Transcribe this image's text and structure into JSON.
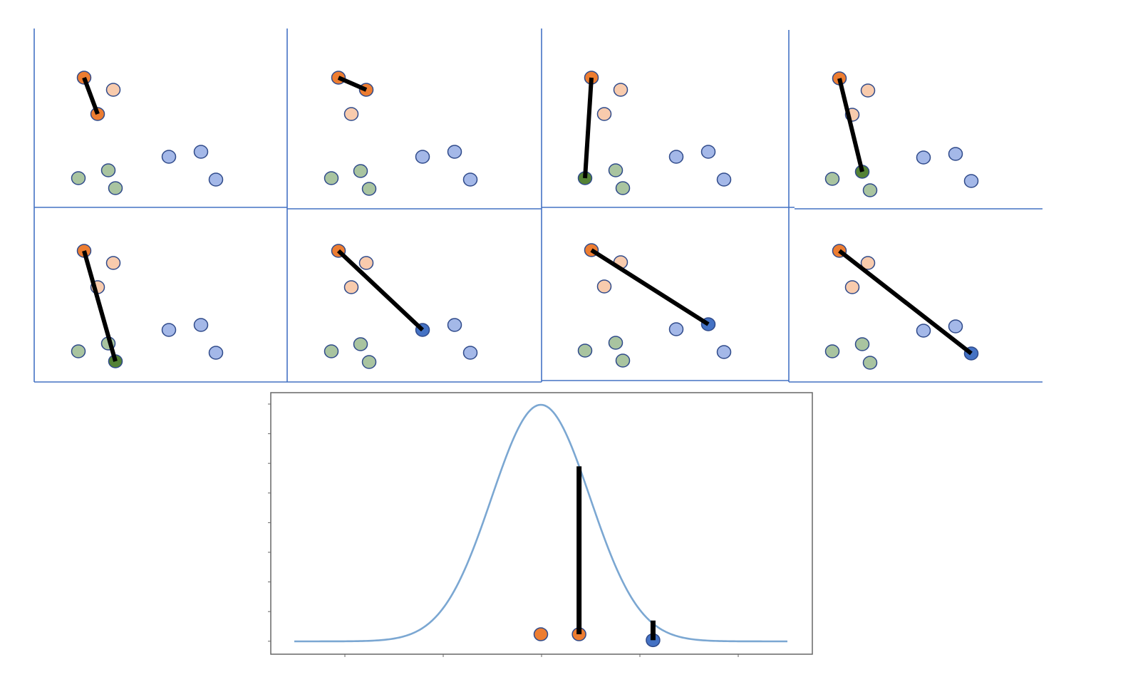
{
  "colors": {
    "panel_border": "#4472c4",
    "query_point": "#ed7d31",
    "orange_light": "#f8cbad",
    "green_light": "#a9c4a0",
    "green_dark": "#548235",
    "blue_light": "#a4b8e8",
    "blue_dark": "#4472c4",
    "point_outline": "#2f4a8a",
    "distance_line": "#000000",
    "curve": "#7ba7d2",
    "curve_frame": "#666666"
  },
  "panels": [
    {
      "points": [
        {
          "x": 118,
          "y": 109,
          "cls": "orange",
          "shade": "query"
        },
        {
          "x": 159,
          "y": 126,
          "cls": "orange",
          "shade": "light"
        },
        {
          "x": 137,
          "y": 160,
          "cls": "orange",
          "shade": "dark"
        },
        {
          "x": 110,
          "y": 250,
          "cls": "green",
          "shade": "light"
        },
        {
          "x": 152,
          "y": 239,
          "cls": "green",
          "shade": "light"
        },
        {
          "x": 162,
          "y": 264,
          "cls": "green",
          "shade": "light"
        },
        {
          "x": 237,
          "y": 220,
          "cls": "blue",
          "shade": "light"
        },
        {
          "x": 282,
          "y": 213,
          "cls": "blue",
          "shade": "light"
        },
        {
          "x": 303,
          "y": 252,
          "cls": "blue",
          "shade": "light"
        }
      ],
      "link": {
        "from": 0,
        "to": 2
      }
    },
    {
      "points": [
        {
          "x": 118,
          "y": 109,
          "cls": "orange",
          "shade": "query"
        },
        {
          "x": 157,
          "y": 126,
          "cls": "orange",
          "shade": "dark"
        },
        {
          "x": 136,
          "y": 160,
          "cls": "orange",
          "shade": "light"
        },
        {
          "x": 108,
          "y": 250,
          "cls": "green",
          "shade": "light"
        },
        {
          "x": 149,
          "y": 240,
          "cls": "green",
          "shade": "light"
        },
        {
          "x": 161,
          "y": 265,
          "cls": "green",
          "shade": "light"
        },
        {
          "x": 236,
          "y": 220,
          "cls": "blue",
          "shade": "light"
        },
        {
          "x": 281,
          "y": 213,
          "cls": "blue",
          "shade": "light"
        },
        {
          "x": 303,
          "y": 252,
          "cls": "blue",
          "shade": "light"
        }
      ],
      "link": {
        "from": 0,
        "to": 1
      }
    },
    {
      "points": [
        {
          "x": 118,
          "y": 109,
          "cls": "orange",
          "shade": "query"
        },
        {
          "x": 159,
          "y": 126,
          "cls": "orange",
          "shade": "light"
        },
        {
          "x": 136,
          "y": 160,
          "cls": "orange",
          "shade": "light"
        },
        {
          "x": 109,
          "y": 250,
          "cls": "green",
          "shade": "dark"
        },
        {
          "x": 152,
          "y": 239,
          "cls": "green",
          "shade": "light"
        },
        {
          "x": 162,
          "y": 264,
          "cls": "green",
          "shade": "light"
        },
        {
          "x": 237,
          "y": 220,
          "cls": "blue",
          "shade": "light"
        },
        {
          "x": 282,
          "y": 213,
          "cls": "blue",
          "shade": "light"
        },
        {
          "x": 304,
          "y": 252,
          "cls": "blue",
          "shade": "light"
        }
      ],
      "link": {
        "from": 0,
        "to": 3
      }
    },
    {
      "points": [
        {
          "x": 118,
          "y": 109,
          "cls": "orange",
          "shade": "query"
        },
        {
          "x": 158,
          "y": 126,
          "cls": "orange",
          "shade": "light"
        },
        {
          "x": 136,
          "y": 160,
          "cls": "orange",
          "shade": "light"
        },
        {
          "x": 108,
          "y": 250,
          "cls": "green",
          "shade": "light"
        },
        {
          "x": 150,
          "y": 240,
          "cls": "green",
          "shade": "dark"
        },
        {
          "x": 161,
          "y": 266,
          "cls": "green",
          "shade": "light"
        },
        {
          "x": 236,
          "y": 220,
          "cls": "blue",
          "shade": "light"
        },
        {
          "x": 281,
          "y": 215,
          "cls": "blue",
          "shade": "light"
        },
        {
          "x": 303,
          "y": 253,
          "cls": "blue",
          "shade": "light"
        }
      ],
      "link": {
        "from": 0,
        "to": 4
      }
    },
    {
      "points": [
        {
          "x": 118,
          "y": 109,
          "cls": "orange",
          "shade": "query"
        },
        {
          "x": 159,
          "y": 126,
          "cls": "orange",
          "shade": "light"
        },
        {
          "x": 137,
          "y": 160,
          "cls": "orange",
          "shade": "light"
        },
        {
          "x": 110,
          "y": 250,
          "cls": "green",
          "shade": "light"
        },
        {
          "x": 152,
          "y": 239,
          "cls": "green",
          "shade": "light"
        },
        {
          "x": 162,
          "y": 264,
          "cls": "green",
          "shade": "dark"
        },
        {
          "x": 237,
          "y": 220,
          "cls": "blue",
          "shade": "light"
        },
        {
          "x": 282,
          "y": 213,
          "cls": "blue",
          "shade": "light"
        },
        {
          "x": 303,
          "y": 252,
          "cls": "blue",
          "shade": "light"
        }
      ],
      "link": {
        "from": 0,
        "to": 5
      }
    },
    {
      "points": [
        {
          "x": 118,
          "y": 109,
          "cls": "orange",
          "shade": "query"
        },
        {
          "x": 157,
          "y": 126,
          "cls": "orange",
          "shade": "light"
        },
        {
          "x": 136,
          "y": 160,
          "cls": "orange",
          "shade": "light"
        },
        {
          "x": 108,
          "y": 250,
          "cls": "green",
          "shade": "light"
        },
        {
          "x": 149,
          "y": 240,
          "cls": "green",
          "shade": "light"
        },
        {
          "x": 161,
          "y": 265,
          "cls": "green",
          "shade": "light"
        },
        {
          "x": 236,
          "y": 220,
          "cls": "blue",
          "shade": "dark"
        },
        {
          "x": 281,
          "y": 213,
          "cls": "blue",
          "shade": "light"
        },
        {
          "x": 303,
          "y": 252,
          "cls": "blue",
          "shade": "light"
        }
      ],
      "link": {
        "from": 0,
        "to": 6
      }
    },
    {
      "points": [
        {
          "x": 118,
          "y": 109,
          "cls": "orange",
          "shade": "query"
        },
        {
          "x": 159,
          "y": 126,
          "cls": "orange",
          "shade": "light"
        },
        {
          "x": 136,
          "y": 160,
          "cls": "orange",
          "shade": "light"
        },
        {
          "x": 109,
          "y": 250,
          "cls": "green",
          "shade": "light"
        },
        {
          "x": 152,
          "y": 239,
          "cls": "green",
          "shade": "light"
        },
        {
          "x": 162,
          "y": 264,
          "cls": "green",
          "shade": "light"
        },
        {
          "x": 237,
          "y": 220,
          "cls": "blue",
          "shade": "light"
        },
        {
          "x": 282,
          "y": 213,
          "cls": "blue",
          "shade": "dark"
        },
        {
          "x": 304,
          "y": 252,
          "cls": "blue",
          "shade": "light"
        }
      ],
      "link": {
        "from": 0,
        "to": 7
      }
    },
    {
      "points": [
        {
          "x": 118,
          "y": 109,
          "cls": "orange",
          "shade": "query"
        },
        {
          "x": 158,
          "y": 126,
          "cls": "orange",
          "shade": "light"
        },
        {
          "x": 136,
          "y": 160,
          "cls": "orange",
          "shade": "light"
        },
        {
          "x": 108,
          "y": 250,
          "cls": "green",
          "shade": "light"
        },
        {
          "x": 150,
          "y": 240,
          "cls": "green",
          "shade": "light"
        },
        {
          "x": 161,
          "y": 266,
          "cls": "green",
          "shade": "light"
        },
        {
          "x": 236,
          "y": 221,
          "cls": "blue",
          "shade": "light"
        },
        {
          "x": 281,
          "y": 215,
          "cls": "blue",
          "shade": "light"
        },
        {
          "x": 303,
          "y": 253,
          "cls": "blue",
          "shade": "dark"
        }
      ],
      "link": {
        "from": 0,
        "to": 8
      }
    }
  ],
  "curve": {
    "x_range": [
      -1,
      1
    ],
    "y_range": [
      0,
      1
    ],
    "sigma": 0.2,
    "markers": [
      {
        "x": 0.0,
        "y": 0.03,
        "color": "orange",
        "bar_height": 0
      },
      {
        "x": 0.155,
        "y": 0.03,
        "color": "orange",
        "bar_height": 0.71
      },
      {
        "x": 0.455,
        "y": 0.005,
        "color": "blue",
        "bar_height": 0.083
      }
    ]
  }
}
